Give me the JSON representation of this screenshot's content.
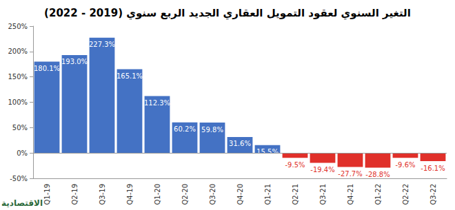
{
  "chart_data": {
    "type": "bar",
    "title": "التغير السنوي لعقود التمويل العقاري الجديد الربع سنوي (2019 - 2022)",
    "annotation": "الاقتصادية",
    "categories": [
      "Q1-19",
      "Q2-19",
      "Q3-19",
      "Q4-19",
      "Q1-20",
      "Q2-20",
      "Q3-20",
      "Q4-20",
      "Q1-21",
      "Q2-21",
      "Q3-21",
      "Q4-21",
      "Q1-22",
      "Q2-22",
      "Q3-22"
    ],
    "values": [
      180.1,
      193.0,
      227.3,
      165.1,
      112.3,
      60.2,
      59.8,
      31.6,
      15.5,
      -9.5,
      -19.4,
      -27.7,
      -28.8,
      -9.6,
      -16.1
    ],
    "value_labels": [
      "180.1%",
      "193.0%",
      "227.3%",
      "165.1%",
      "112.3%",
      "60.2%",
      "59.8%",
      "31.6%",
      "15.5%",
      "-9.5%",
      "-19.4%",
      "-27.7%",
      "-28.8%",
      "-9.6%",
      "-16.1%"
    ],
    "colors": [
      "#4472c4",
      "#4472c4",
      "#4472c4",
      "#4472c4",
      "#4472c4",
      "#4472c4",
      "#4472c4",
      "#4472c4",
      "#4472c4",
      "#e0302a",
      "#e0302a",
      "#e0302a",
      "#e0302a",
      "#e0302a",
      "#e0302a"
    ],
    "ylim": [
      -50,
      250
    ],
    "yticks": [
      {
        "value": -50,
        "label": "-50%"
      },
      {
        "value": 0,
        "label": "0%"
      },
      {
        "value": 50,
        "label": "50%"
      },
      {
        "value": 100,
        "label": "100%"
      },
      {
        "value": 150,
        "label": "150%"
      },
      {
        "value": 200,
        "label": "200%"
      },
      {
        "value": 250,
        "label": "250%"
      }
    ],
    "grid": false,
    "data_labels": true
  }
}
